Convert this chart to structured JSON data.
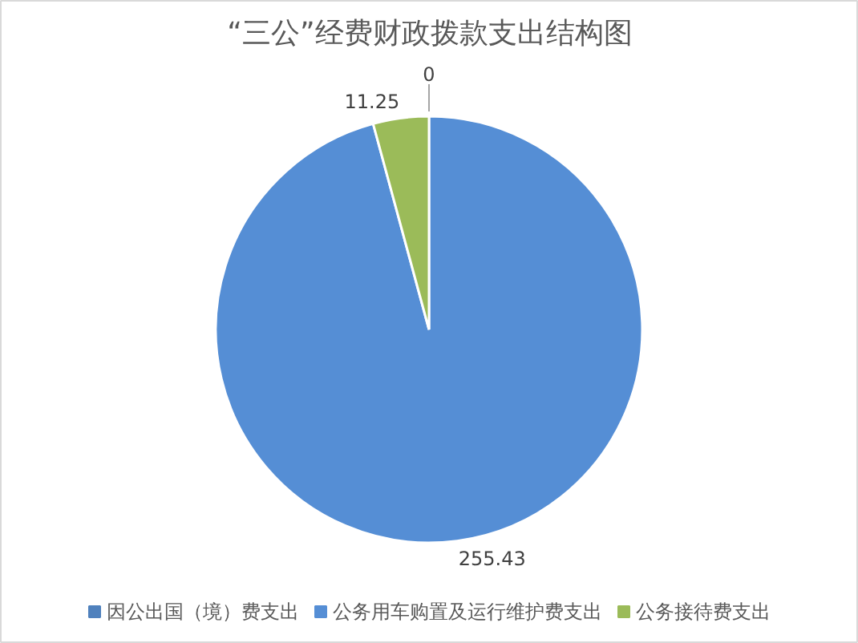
{
  "chart_data": {
    "type": "pie",
    "title": "“三公”经费财政拨款支出结构图",
    "categories": [
      "因公出国（境）费支出",
      "公务用车购置及运行维护费支出",
      "公务接待费支出"
    ],
    "values": [
      0,
      255.43,
      11.25
    ],
    "value_labels": [
      "0",
      "255.43",
      "11.25"
    ],
    "colors": [
      "#4f81bd",
      "#558ed5",
      "#9bbb59"
    ],
    "legend": "bottom"
  }
}
